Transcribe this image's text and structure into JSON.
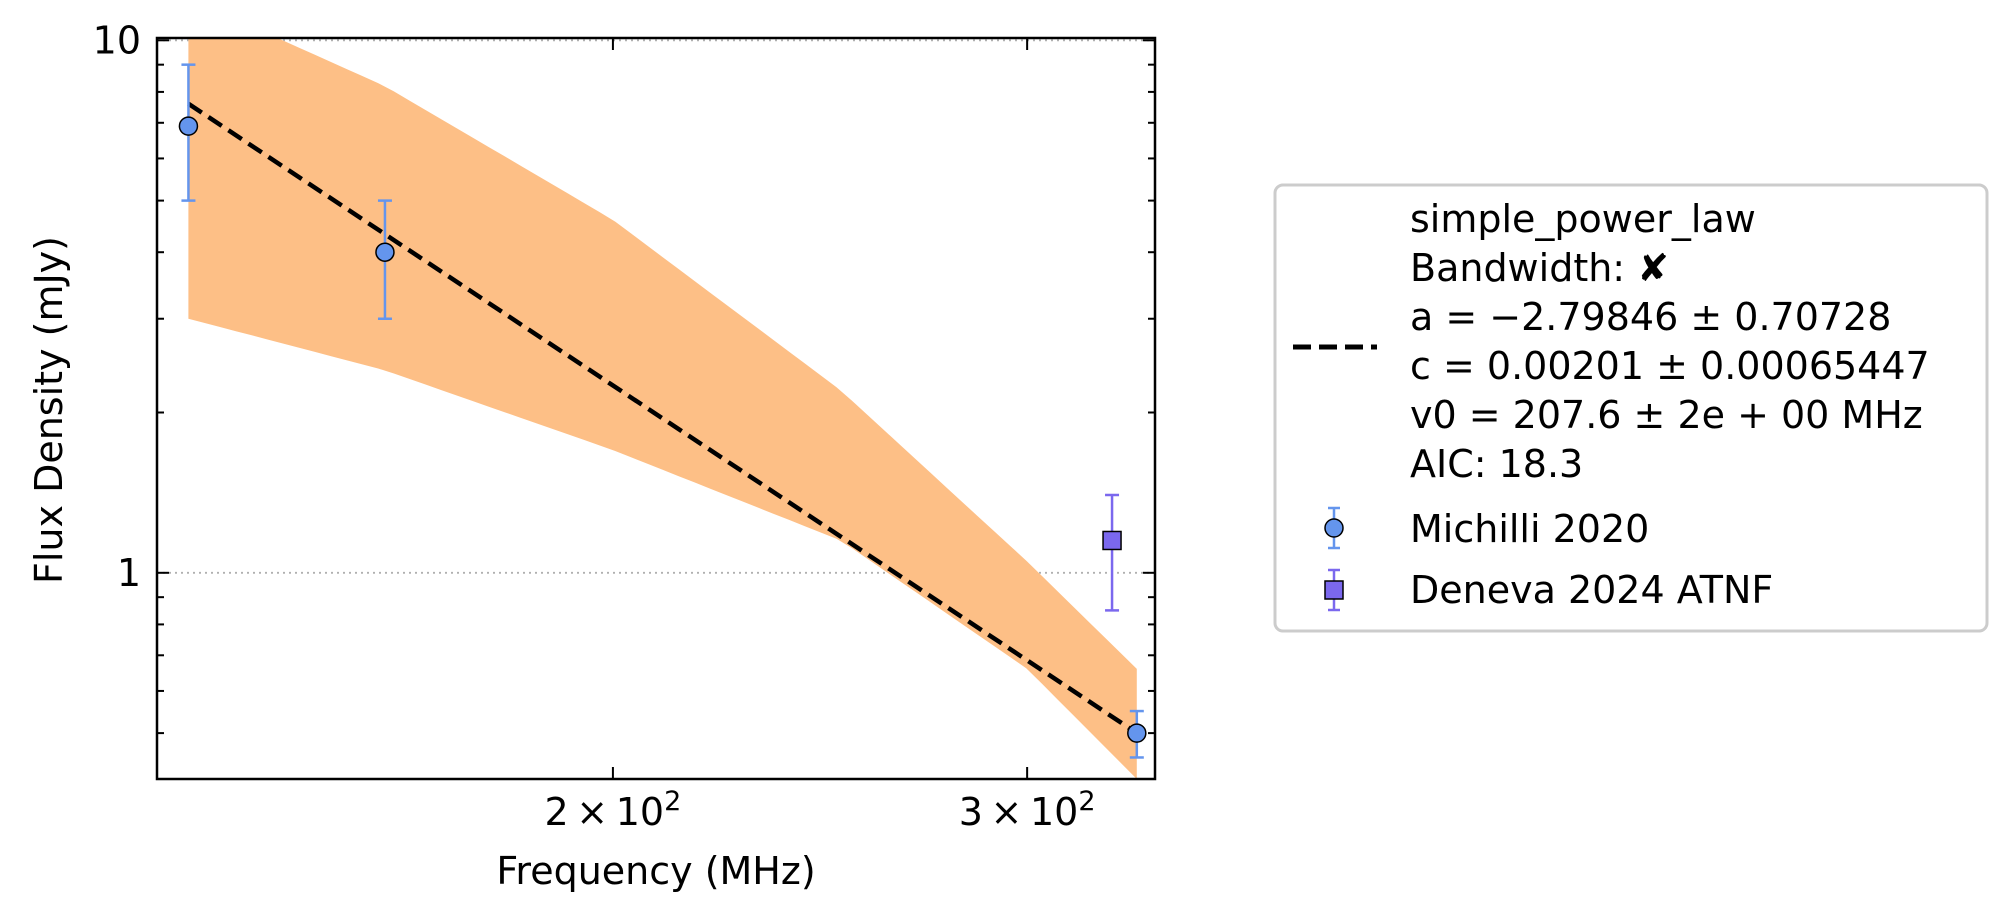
{
  "chart_data": {
    "type": "scatter",
    "title": "",
    "xlabel": "Frequency (MHz)",
    "ylabel": "Flux Density (mJy)",
    "xscale": "log",
    "yscale": "log",
    "xlim": [
      128,
      340
    ],
    "ylim": [
      0.41,
      10.1
    ],
    "grid": "horizontal dotted at major y ticks",
    "x_tick_labels": [
      {
        "value": 200,
        "mantissa": "2",
        "exponent": "2"
      },
      {
        "value": 300,
        "mantissa": "3",
        "exponent": "2"
      }
    ],
    "y_tick_labels": [
      {
        "value": 1,
        "label": "1"
      },
      {
        "value": 10,
        "label": "10"
      }
    ],
    "fit": {
      "model": "simple_power_law",
      "x_range": [
        132,
        334
      ],
      "y_at_start": 7.6,
      "y_at_end": 0.5,
      "band_lower": [
        [
          132,
          3.0
        ],
        [
          160,
          2.4
        ],
        [
          200,
          1.7
        ],
        [
          250,
          1.15
        ],
        [
          300,
          0.66
        ],
        [
          334,
          0.41
        ]
      ],
      "band_upper": [
        [
          132,
          12.0
        ],
        [
          160,
          8.2
        ],
        [
          200,
          4.6
        ],
        [
          250,
          2.2
        ],
        [
          300,
          1.05
        ],
        [
          334,
          0.66
        ]
      ],
      "line_color": "#000000",
      "band_color": "#fdbf86"
    },
    "series": [
      {
        "name": "Michilli 2020",
        "marker": "circle",
        "color": "#6495ed",
        "points": [
          {
            "x": 132,
            "y": 6.9,
            "err_low": 5.0,
            "err_high": 9.0
          },
          {
            "x": 160,
            "y": 4.0,
            "err_low": 3.0,
            "err_high": 5.0
          },
          {
            "x": 334,
            "y": 0.5,
            "err_low": 0.45,
            "err_high": 0.55
          }
        ]
      },
      {
        "name": "Deneva 2024 ATNF",
        "marker": "square",
        "color": "#7b68ee",
        "points": [
          {
            "x": 326,
            "y": 1.15,
            "err_low": 0.85,
            "err_high": 1.4
          }
        ]
      }
    ],
    "legend": {
      "placement": "outside right",
      "fit_lines": [
        "simple_power_law",
        "Bandwidth: ✘",
        "a = −2.79846 ± 0.70728",
        "c = 0.00201 ± 0.00065447",
        "v0 = 207.6 ± 2e + 00 MHz",
        "AIC: 18.3"
      ],
      "entries": [
        "Michilli 2020",
        "Deneva 2024 ATNF"
      ]
    }
  }
}
